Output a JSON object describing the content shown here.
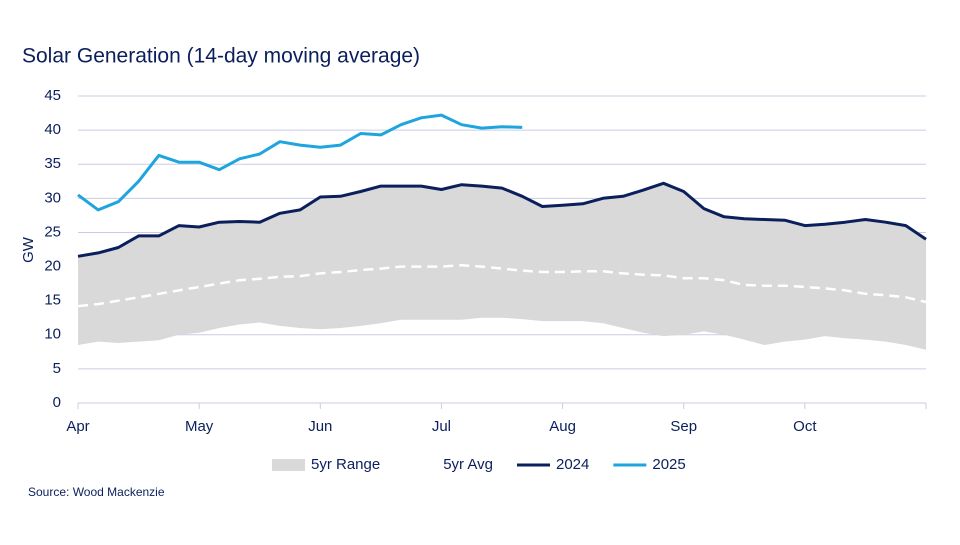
{
  "chart_data": {
    "type": "line",
    "title": "Solar Generation (14-day moving average)",
    "y_label": "GW",
    "source": "Source: Wood Mackenzie",
    "categories": [
      "Apr",
      null,
      null,
      null,
      null,
      null,
      "May",
      null,
      null,
      null,
      null,
      null,
      "Jun",
      null,
      null,
      null,
      null,
      null,
      "Jul",
      null,
      null,
      null,
      null,
      null,
      "Aug",
      null,
      null,
      null,
      null,
      null,
      "Sep",
      null,
      null,
      null,
      null,
      null,
      "Oct",
      null,
      null,
      null,
      null,
      null,
      null
    ],
    "ylim": [
      0,
      45
    ],
    "yticks": [
      0,
      5,
      10,
      15,
      20,
      25,
      30,
      35,
      40,
      45
    ],
    "grid": true,
    "legend": "bottom",
    "series": [
      {
        "name": "5yr Range",
        "type": "range",
        "color": "#d9d9d9",
        "high": [
          21.5,
          22,
          22.8,
          24.5,
          24.5,
          26,
          25.8,
          26.5,
          26.6,
          26.5,
          27.8,
          28.3,
          30.2,
          30.3,
          31,
          31.8,
          31.8,
          31.8,
          31.3,
          32,
          31.8,
          31.5,
          30.3,
          28.8,
          29,
          29.2,
          30,
          30.3,
          31.2,
          32.2,
          31,
          28.5,
          27.3,
          27,
          26.9,
          26.8,
          26,
          26.2,
          26.5,
          26.9,
          26.5,
          26,
          24
        ],
        "low": [
          8.5,
          9,
          8.8,
          9,
          9.2,
          10,
          10.3,
          11,
          11.5,
          11.8,
          11.3,
          11,
          10.8,
          11,
          11.3,
          11.7,
          12.2,
          12.2,
          12.2,
          12.2,
          12.5,
          12.5,
          12.3,
          12,
          12,
          12,
          11.7,
          11,
          10.3,
          9.8,
          10,
          10.5,
          10,
          9.3,
          8.5,
          9,
          9.3,
          9.8,
          9.5,
          9.3,
          9,
          8.5,
          7.8
        ]
      },
      {
        "name": "5yr Avg",
        "color": "#ffffff",
        "dashed": true,
        "values": [
          14.2,
          14.5,
          15,
          15.5,
          16,
          16.5,
          17,
          17.5,
          18,
          18.2,
          18.5,
          18.6,
          19,
          19.2,
          19.5,
          19.7,
          20,
          20,
          20,
          20.2,
          20,
          19.7,
          19.4,
          19.2,
          19.2,
          19.3,
          19.3,
          19,
          18.8,
          18.7,
          18.3,
          18.3,
          18,
          17.3,
          17.2,
          17.2,
          17,
          16.8,
          16.5,
          16,
          15.8,
          15.5,
          14.8
        ]
      },
      {
        "name": "2024",
        "color": "#0b1f5c",
        "values": [
          21.5,
          22,
          22.8,
          24.5,
          24.5,
          26,
          25.8,
          26.5,
          26.6,
          26.5,
          27.8,
          28.3,
          30.2,
          30.3,
          31,
          31.8,
          31.8,
          31.8,
          31.3,
          32,
          31.8,
          31.5,
          30.3,
          28.8,
          29,
          29.2,
          30,
          30.3,
          31.2,
          32.2,
          31,
          28.5,
          27.3,
          27,
          26.9,
          26.8,
          26,
          26.2,
          26.5,
          26.9,
          26.5,
          26,
          24
        ]
      },
      {
        "name": "2025",
        "color": "#1fa5dd",
        "values": [
          30.5,
          28.3,
          29.5,
          32.5,
          36.3,
          35.3,
          35.3,
          34.2,
          35.8,
          36.5,
          38.3,
          37.8,
          37.5,
          37.8,
          39.5,
          39.3,
          40.8,
          41.8,
          42.2,
          40.8,
          40.3,
          40.5,
          40.4,
          null,
          null,
          null,
          null,
          null,
          null,
          null,
          null,
          null,
          null,
          null,
          null,
          null,
          null,
          null,
          null,
          null,
          null,
          null,
          null
        ]
      }
    ]
  }
}
